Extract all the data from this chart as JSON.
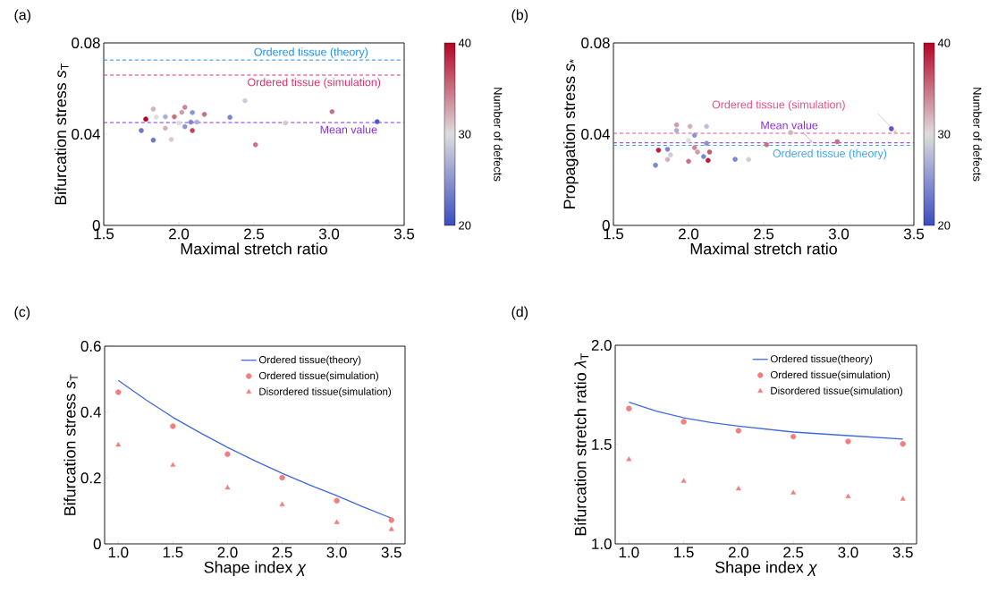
{
  "chart_data": [
    {
      "type": "scatter",
      "title": "(a)",
      "xlabel": "Maximal stretch ratio",
      "ylabel": "Bifurcation stress *s*$_{T}$",
      "clabel": "Number of defects",
      "marker": "circle",
      "xlim": [
        1.5,
        3.5
      ],
      "ylim": [
        0,
        0.08
      ],
      "xticks": [
        1.5,
        {
          "value": 2,
          "label": "2.0"
        },
        2.5,
        {
          "value": 3,
          "label": "3.0"
        },
        3.5
      ],
      "yticks": [
        0,
        0.04,
        0.08
      ],
      "clim": [
        20,
        40
      ],
      "cticks": [
        20,
        30,
        40
      ],
      "x": [
        1.78,
        1.75,
        1.83,
        1.85,
        1.83,
        1.91,
        1.91,
        1.95,
        1.97,
        2.0,
        2.02,
        2.04,
        2.04,
        2.08,
        2.09,
        2.09,
        2.12,
        2.17,
        2.34,
        2.44,
        2.51,
        2.71,
        3.02,
        3.32
      ],
      "values": [
        0.0466,
        0.0416,
        0.051,
        0.0475,
        0.0374,
        0.0476,
        0.0426,
        0.0377,
        0.0476,
        0.0449,
        0.0496,
        0.0518,
        0.0433,
        0.0453,
        0.0495,
        0.0416,
        0.0453,
        0.0487,
        0.0474,
        0.0547,
        0.0354,
        0.0449,
        0.0499,
        0.0455
      ],
      "cvalues": [
        40,
        23,
        32,
        30,
        23,
        27,
        32,
        31,
        35,
        30,
        33,
        34,
        25,
        24,
        25,
        37,
        27,
        35,
        24,
        29,
        35,
        31,
        35,
        21
      ],
      "ref_lines": [
        {
          "axis": "y",
          "value": 0.0725,
          "label": "Ordered tissue (theory)",
          "color": "#1e8ff0",
          "line_style": "dashed"
        },
        {
          "axis": "y",
          "value": 0.0659,
          "label": "Ordered tissue (simulation)",
          "color": "#e0306a",
          "line_style": "dashed"
        },
        {
          "axis": "y",
          "value": 0.0451,
          "label": "Mean value",
          "color": "#8a2be2",
          "line_style": "dashed"
        }
      ]
    },
    {
      "type": "scatter",
      "title": "(b)",
      "xlabel": "Maximal stretch ratio",
      "ylabel": "Propagation stress *s*$_{*}$",
      "clabel": "Number of defects",
      "marker": "circle",
      "xlim": [
        1.5,
        3.5
      ],
      "ylim": [
        0,
        0.08
      ],
      "xticks": [
        1.5,
        {
          "value": 2,
          "label": "2.0"
        },
        2.5,
        {
          "value": 3,
          "label": "3.0"
        },
        3.5
      ],
      "yticks": [
        0,
        0.04,
        0.08
      ],
      "clim": [
        20,
        40
      ],
      "cticks": [
        20,
        30,
        40
      ],
      "x": [
        1.78,
        1.8,
        1.86,
        1.86,
        1.88,
        1.92,
        1.92,
        2.0,
        2.0,
        2.01,
        2.04,
        2.04,
        2.06,
        2.1,
        2.12,
        2.12,
        2.13,
        2.14,
        2.31,
        2.4,
        2.52,
        2.68,
        2.99,
        3.35
      ],
      "values": [
        0.0264,
        0.033,
        0.0334,
        0.0289,
        0.0309,
        0.0441,
        0.0416,
        0.0372,
        0.0281,
        0.0434,
        0.0395,
        0.0341,
        0.0322,
        0.0302,
        0.0434,
        0.036,
        0.0285,
        0.0322,
        0.029,
        0.0289,
        0.0354,
        0.0407,
        0.0367,
        0.0424
      ],
      "cvalues": [
        24,
        39,
        24,
        32,
        29,
        33,
        27,
        30,
        35,
        32,
        25,
        34,
        33,
        24,
        28,
        25,
        39,
        36,
        24,
        29,
        35,
        32,
        35,
        21
      ],
      "ref_lines": [
        {
          "axis": "y",
          "value": 0.0404,
          "label": "Ordered tissue (simulation)",
          "color": "#e5508a",
          "line_style": "dashed"
        },
        {
          "axis": "y",
          "value": 0.0362,
          "label": "Mean value",
          "color": "#8a2be2",
          "line_style": "dashed"
        },
        {
          "axis": "y",
          "value": 0.0351,
          "label": "Ordered tissue (theory)",
          "color": "#3fa6ee",
          "line_style": "dashed"
        }
      ]
    },
    {
      "type": "scatter",
      "title": "(c)",
      "xlabel": "Shape index *χ*",
      "ylabel": "Bifurcation stress *s*$_{T}$",
      "legend": "top right",
      "xlim": [
        0.875,
        3.625
      ],
      "ylim": [
        0,
        0.6
      ],
      "xticks": [
        {
          "value": 1,
          "label": "1.0"
        },
        1.5,
        {
          "value": 2,
          "label": "2.0"
        },
        2.5,
        {
          "value": 3,
          "label": "3.0"
        },
        3.5
      ],
      "yticks": [
        0,
        0.2,
        0.4,
        0.6
      ],
      "series": [
        {
          "name": "Ordered tissue(theory)",
          "type": "line",
          "color": "#3f68e0",
          "marker": "none",
          "x": [
            1.0,
            1.25,
            1.5,
            1.75,
            2.0,
            2.25,
            2.5,
            2.75,
            3.0,
            3.25,
            3.5
          ],
          "values": [
            0.496,
            0.438,
            0.384,
            0.337,
            0.293,
            0.252,
            0.214,
            0.179,
            0.146,
            0.111,
            0.078
          ]
        },
        {
          "name": "Ordered tissue(simulation)",
          "type": "scatter",
          "color": "#f07f7f",
          "marker": "circle",
          "x": [
            1.0,
            1.5,
            2.0,
            2.5,
            3.0,
            3.5
          ],
          "values": [
            0.46,
            0.357,
            0.272,
            0.201,
            0.131,
            0.072
          ]
        },
        {
          "name": "Disordered tissue(simulation)",
          "type": "scatter",
          "color": "#f07f7f",
          "marker": "triangle",
          "x": [
            1.0,
            1.5,
            2.0,
            2.5,
            3.0,
            3.5
          ],
          "values": [
            0.3,
            0.239,
            0.17,
            0.119,
            0.065,
            0.044
          ]
        }
      ]
    },
    {
      "type": "scatter",
      "title": "(d)",
      "xlabel": "Shape index *χ*",
      "ylabel": "Bifurcation stretch ratio *λ*$_{T}$",
      "legend": "top right",
      "xlim": [
        0.875,
        3.625
      ],
      "ylim": [
        1.0,
        2.0
      ],
      "xticks": [
        {
          "value": 1,
          "label": "1.0"
        },
        1.5,
        {
          "value": 2,
          "label": "2.0"
        },
        2.5,
        {
          "value": 3,
          "label": "3.0"
        },
        3.5
      ],
      "yticks": [
        {
          "value": 1,
          "label": "1.0"
        },
        1.5,
        {
          "value": 2,
          "label": "2.0"
        }
      ],
      "series": [
        {
          "name": "Ordered tissue(theory)",
          "type": "line",
          "color": "#3f68e0",
          "marker": "none",
          "x": [
            1.0,
            1.25,
            1.5,
            1.75,
            2.0,
            2.5,
            3.0,
            3.5
          ],
          "values": [
            1.713,
            1.668,
            1.635,
            1.611,
            1.593,
            1.563,
            1.545,
            1.528
          ]
        },
        {
          "name": "Ordered tissue(simulation)",
          "type": "scatter",
          "color": "#f07f7f",
          "marker": "circle",
          "x": [
            1.0,
            1.5,
            2.0,
            2.5,
            3.0,
            3.5
          ],
          "values": [
            1.681,
            1.615,
            1.57,
            1.54,
            1.516,
            1.503
          ]
        },
        {
          "name": "Disordered tissue(simulation)",
          "type": "scatter",
          "color": "#f07f7f",
          "marker": "triangle",
          "x": [
            1.0,
            1.5,
            2.0,
            2.5,
            3.0,
            3.5
          ],
          "values": [
            1.425,
            1.316,
            1.277,
            1.257,
            1.238,
            1.226
          ]
        }
      ]
    }
  ]
}
